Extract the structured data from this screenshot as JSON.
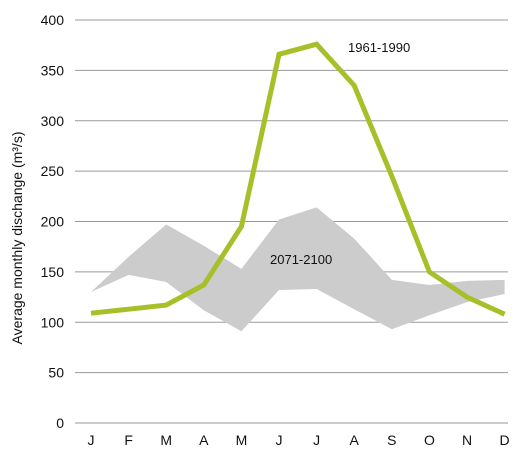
{
  "chart_data": {
    "type": "line",
    "title": "",
    "xlabel": "",
    "ylabel": "Average monthly dischange (m³/s)",
    "ylim": [
      0,
      400
    ],
    "yticks": [
      0,
      50,
      100,
      150,
      200,
      250,
      300,
      350,
      400
    ],
    "grid": true,
    "categories": [
      "J",
      "F",
      "M",
      "A",
      "M",
      "J",
      "J",
      "A",
      "S",
      "O",
      "N",
      "D"
    ],
    "series": [
      {
        "name": "1961-1990",
        "type": "line",
        "color": "#a8bf2a",
        "values": [
          109,
          113,
          117,
          137,
          195,
          366,
          376,
          335,
          245,
          150,
          125,
          108
        ]
      },
      {
        "name": "2071-2100",
        "type": "band",
        "color": "#cccccc",
        "lower": [
          130,
          147,
          140,
          112,
          91,
          132,
          133,
          113,
          93,
          107,
          120,
          128
        ],
        "upper": [
          130,
          165,
          197,
          176,
          153,
          202,
          214,
          183,
          142,
          137,
          141,
          142
        ]
      }
    ]
  }
}
